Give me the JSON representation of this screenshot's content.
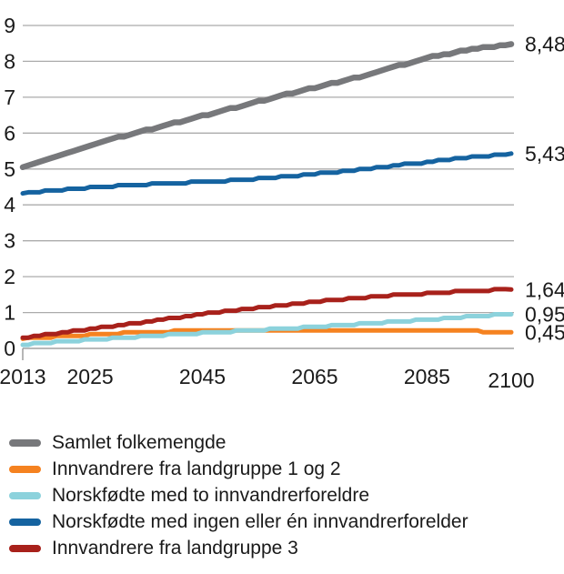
{
  "chart_data": {
    "type": "line",
    "title": "",
    "xlabel": "",
    "ylabel": "",
    "xlim": [
      2013,
      2100
    ],
    "ylim": [
      0,
      9
    ],
    "x_ticks": [
      2013,
      2025,
      2045,
      2065,
      2085,
      2100
    ],
    "y_ticks": [
      0,
      1,
      2,
      3,
      4,
      5,
      6,
      7,
      8,
      9
    ],
    "grid": "horizontal",
    "legend_position": "bottom",
    "x": [
      2013,
      2015,
      2020,
      2025,
      2030,
      2035,
      2040,
      2045,
      2050,
      2055,
      2060,
      2065,
      2070,
      2075,
      2080,
      2085,
      2090,
      2095,
      2100
    ],
    "series": [
      {
        "name": "Samlet folkemengde",
        "color": "#77787B",
        "end_label": "8,48",
        "values": [
          5.05,
          5.16,
          5.42,
          5.66,
          5.88,
          6.08,
          6.28,
          6.48,
          6.68,
          6.88,
          7.08,
          7.27,
          7.46,
          7.65,
          7.88,
          8.1,
          8.25,
          8.38,
          8.48
        ]
      },
      {
        "name": "Innvandrere fra landgruppe 1 og 2",
        "color": "#F58220",
        "end_label": "0,45",
        "values": [
          0.27,
          0.29,
          0.34,
          0.38,
          0.42,
          0.45,
          0.48,
          0.5,
          0.51,
          0.52,
          0.52,
          0.52,
          0.52,
          0.52,
          0.52,
          0.52,
          0.51,
          0.47,
          0.45
        ]
      },
      {
        "name": "Norskfødte med to innvandrerforeldre",
        "color": "#8CD2DC",
        "end_label": "0,95",
        "values": [
          0.1,
          0.13,
          0.19,
          0.24,
          0.29,
          0.34,
          0.39,
          0.43,
          0.47,
          0.51,
          0.55,
          0.6,
          0.65,
          0.7,
          0.75,
          0.8,
          0.86,
          0.91,
          0.95
        ]
      },
      {
        "name": "Norskfødte med ingen eller én innvandrerforelder",
        "color": "#1563A0",
        "end_label": "5,43",
        "values": [
          4.32,
          4.35,
          4.42,
          4.48,
          4.53,
          4.57,
          4.61,
          4.64,
          4.68,
          4.73,
          4.79,
          4.86,
          4.94,
          5.02,
          5.11,
          5.19,
          5.28,
          5.36,
          5.43
        ]
      },
      {
        "name": "Innvandrere fra landgruppe 3",
        "color": "#A8211B",
        "end_label": "1,64",
        "values": [
          0.3,
          0.34,
          0.44,
          0.54,
          0.64,
          0.74,
          0.85,
          0.96,
          1.05,
          1.14,
          1.22,
          1.3,
          1.37,
          1.43,
          1.49,
          1.53,
          1.58,
          1.62,
          1.64
        ]
      }
    ]
  },
  "legend": {
    "order": [
      0,
      1,
      2,
      3,
      4
    ]
  },
  "style": {
    "gridline_color": "#ABABAB",
    "baseline_color": "#8F8F8F",
    "text_color": "#1A1A1A"
  }
}
